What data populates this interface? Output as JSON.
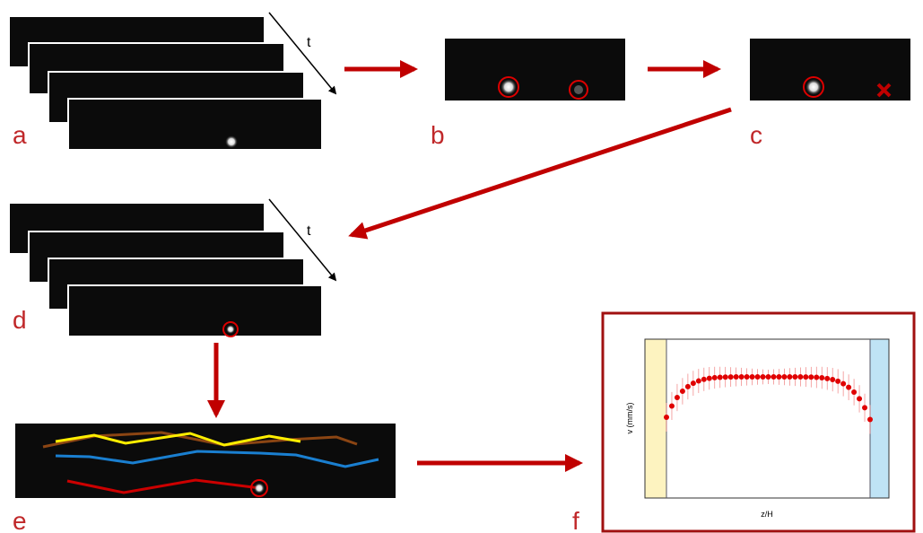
{
  "panel_labels": [
    "a",
    "b",
    "c",
    "d",
    "e",
    "f"
  ],
  "time_labels": [
    "t",
    "t"
  ],
  "plot": {
    "y_axis_label": "v (mm/s)",
    "x_axis_label": "z/H"
  }
}
